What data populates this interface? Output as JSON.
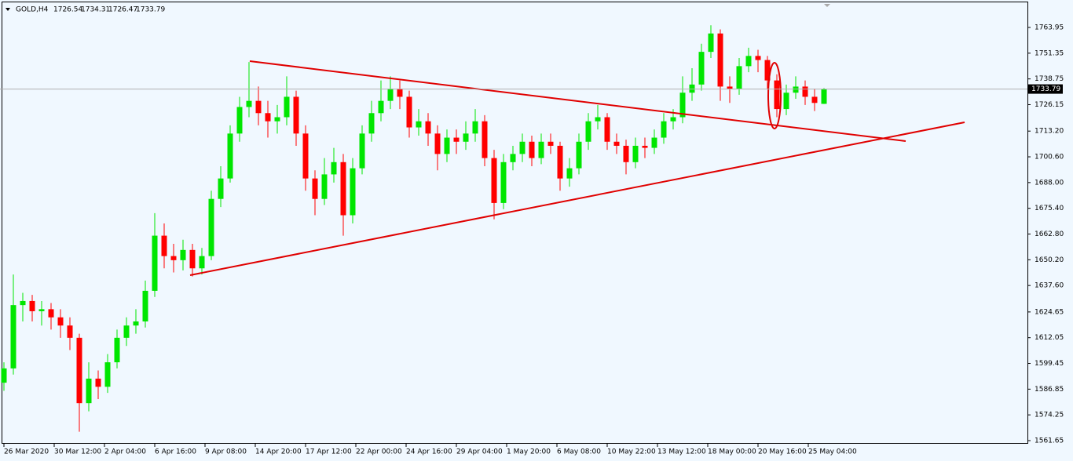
{
  "chart_data": {
    "type": "candlestick",
    "symbol": "GOLD,H4",
    "ylim": [
      1560.11,
      1775.47
    ],
    "yticks": [
      1763.95,
      1751.35,
      1738.75,
      1726.15,
      {
        "value": 1713.2,
        "label": "1713.20"
      },
      {
        "value": 1700.6,
        "label": "1700.60"
      },
      {
        "value": 1688,
        "label": "1688.00"
      },
      {
        "value": 1675.4,
        "label": "1675.40"
      },
      {
        "value": 1662.8,
        "label": "1662.80"
      },
      {
        "value": 1650.2,
        "label": "1650.20"
      },
      {
        "value": 1637.6,
        "label": "1637.60"
      },
      1624.65,
      1612.05,
      1599.45,
      1586.85,
      1574.25,
      1561.65
    ],
    "xtick_labels": [
      "26 Mar 2020",
      "30 Mar 12:00",
      "2 Apr 04:00",
      "6 Apr 16:00",
      "9 Apr 08:00",
      "14 Apr 20:00",
      "17 Apr 12:00",
      "22 Apr 00:00",
      "24 Apr 16:00",
      "29 Apr 04:00",
      "1 May 20:00",
      "6 May 08:00",
      "10 May 22:00",
      "13 May 12:00",
      "18 May 00:00",
      "20 May 16:00",
      "25 May 04:00"
    ],
    "up_color": "#00e600",
    "down_color": "#ff0000",
    "ohlc": [
      [
        1590,
        1600,
        1586,
        1597
      ],
      [
        1597,
        1643,
        1594,
        1628
      ],
      [
        1628,
        1634,
        1620,
        1630
      ],
      [
        1630,
        1633,
        1620,
        1625
      ],
      [
        1625,
        1630,
        1618,
        1626
      ],
      [
        1626,
        1629,
        1616,
        1622
      ],
      [
        1622,
        1626,
        1612,
        1618
      ],
      [
        1618,
        1622,
        1606,
        1612
      ],
      [
        1612,
        1614,
        1566,
        1580
      ],
      [
        1580,
        1600,
        1576,
        1592
      ],
      [
        1592,
        1596,
        1582,
        1588
      ],
      [
        1588,
        1604,
        1585,
        1600
      ],
      [
        1600,
        1616,
        1597,
        1612
      ],
      [
        1612,
        1622,
        1608,
        1618
      ],
      [
        1618,
        1626,
        1614,
        1620
      ],
      [
        1620,
        1640,
        1617,
        1635
      ],
      [
        1635,
        1673,
        1632,
        1662
      ],
      [
        1662,
        1668,
        1646,
        1652
      ],
      [
        1652,
        1658,
        1644,
        1650
      ],
      [
        1650,
        1660,
        1645,
        1655
      ],
      [
        1655,
        1658,
        1642,
        1646
      ],
      [
        1646,
        1656,
        1643,
        1652
      ],
      [
        1652,
        1684,
        1650,
        1680
      ],
      [
        1680,
        1696,
        1676,
        1690
      ],
      [
        1690,
        1716,
        1688,
        1712
      ],
      [
        1712,
        1730,
        1708,
        1725
      ],
      [
        1725,
        1747,
        1720,
        1728
      ],
      [
        1728,
        1735,
        1716,
        1722
      ],
      [
        1722,
        1728,
        1710,
        1718
      ],
      [
        1718,
        1726,
        1712,
        1720
      ],
      [
        1720,
        1740,
        1716,
        1730
      ],
      [
        1730,
        1733,
        1706,
        1712
      ],
      [
        1712,
        1716,
        1684,
        1690
      ],
      [
        1690,
        1694,
        1672,
        1680
      ],
      [
        1680,
        1700,
        1677,
        1692
      ],
      [
        1692,
        1705,
        1688,
        1698
      ],
      [
        1698,
        1702,
        1662,
        1672
      ],
      [
        1672,
        1700,
        1668,
        1695
      ],
      [
        1695,
        1716,
        1692,
        1712
      ],
      [
        1712,
        1728,
        1708,
        1722
      ],
      [
        1722,
        1738,
        1718,
        1728
      ],
      [
        1728,
        1740,
        1724,
        1734
      ],
      [
        1734,
        1738,
        1724,
        1730
      ],
      [
        1730,
        1733,
        1710,
        1715
      ],
      [
        1715,
        1724,
        1711,
        1718
      ],
      [
        1718,
        1722,
        1706,
        1712
      ],
      [
        1712,
        1716,
        1694,
        1702
      ],
      [
        1702,
        1714,
        1698,
        1710
      ],
      [
        1710,
        1714,
        1702,
        1708
      ],
      [
        1708,
        1718,
        1704,
        1712
      ],
      [
        1712,
        1724,
        1708,
        1718
      ],
      [
        1718,
        1721,
        1696,
        1700
      ],
      [
        1700,
        1704,
        1670,
        1678
      ],
      [
        1678,
        1702,
        1675,
        1698
      ],
      [
        1698,
        1706,
        1694,
        1702
      ],
      [
        1702,
        1712,
        1698,
        1708
      ],
      [
        1708,
        1711,
        1696,
        1700
      ],
      [
        1700,
        1712,
        1697,
        1708
      ],
      [
        1708,
        1712,
        1702,
        1706
      ],
      [
        1706,
        1708,
        1684,
        1690
      ],
      [
        1690,
        1700,
        1686,
        1695
      ],
      [
        1695,
        1712,
        1692,
        1708
      ],
      [
        1708,
        1722,
        1704,
        1718
      ],
      [
        1718,
        1726,
        1714,
        1720
      ],
      [
        1720,
        1722,
        1704,
        1708
      ],
      [
        1708,
        1712,
        1702,
        1706
      ],
      [
        1706,
        1709,
        1692,
        1698
      ],
      [
        1698,
        1710,
        1695,
        1706
      ],
      [
        1706,
        1710,
        1700,
        1705
      ],
      [
        1705,
        1714,
        1702,
        1710
      ],
      [
        1710,
        1722,
        1707,
        1718
      ],
      [
        1718,
        1724,
        1714,
        1720
      ],
      [
        1720,
        1740,
        1717,
        1732
      ],
      [
        1732,
        1744,
        1728,
        1736
      ],
      [
        1736,
        1756,
        1733,
        1752
      ],
      [
        1752,
        1765,
        1749,
        1761
      ],
      [
        1761,
        1763,
        1728,
        1735
      ],
      [
        1735,
        1740,
        1727,
        1734
      ],
      [
        1734,
        1749,
        1731,
        1745
      ],
      [
        1745,
        1754,
        1742,
        1750
      ],
      [
        1750,
        1753,
        1742,
        1748
      ],
      [
        1748,
        1750,
        1734,
        1738
      ],
      [
        1738,
        1741,
        1720,
        1724
      ],
      [
        1724,
        1736,
        1721,
        1732
      ],
      [
        1732,
        1740,
        1729,
        1735
      ],
      [
        1735,
        1738,
        1726,
        1730
      ],
      [
        1730,
        1734,
        1723,
        1727
      ],
      [
        1726.54,
        1734.31,
        1726.47,
        1733.79
      ]
    ]
  }
}
